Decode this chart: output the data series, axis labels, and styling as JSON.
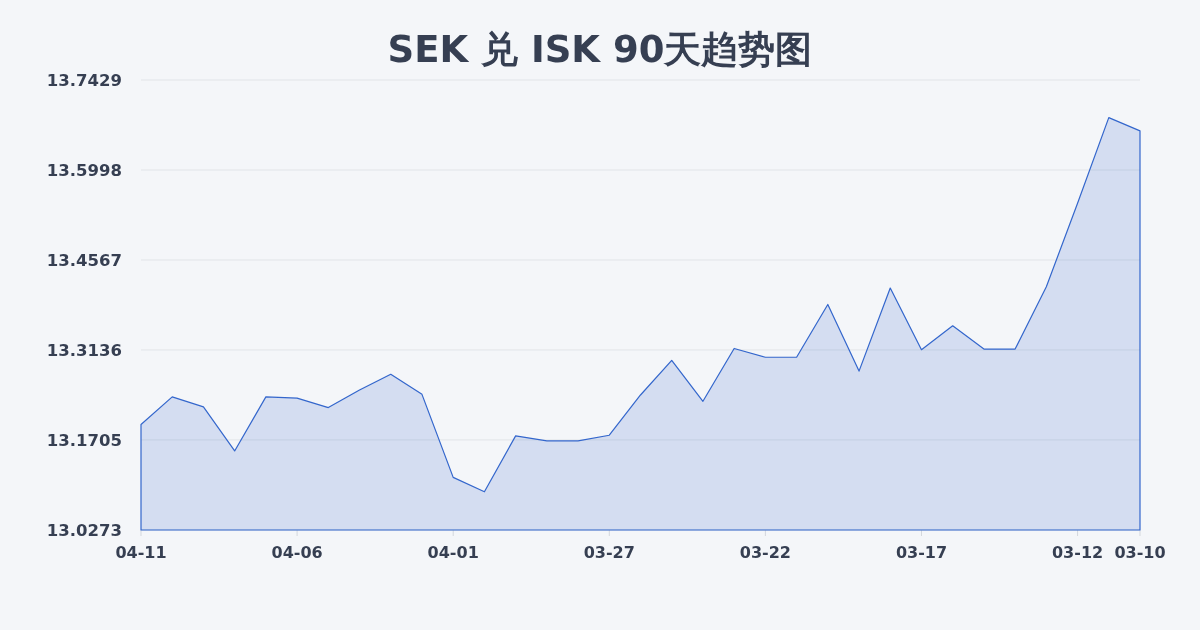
{
  "chart_data": {
    "type": "area",
    "title": "SEK 兑 ISK 90天趋势图",
    "x": [
      "--04-11",
      "--04-10",
      "--04-09",
      "--04-08",
      "--04-07",
      "--04-06",
      "--04-05",
      "--04-04",
      "--04-03",
      "--04-02",
      "--04-01",
      "--03-31",
      "--03-30",
      "--03-29",
      "--03-28",
      "--03-27",
      "--03-26",
      "--03-25",
      "--03-24",
      "--03-23",
      "--03-22",
      "--03-21",
      "--03-20",
      "--03-19",
      "--03-18",
      "--03-17",
      "--03-16",
      "--03-15",
      "--03-14",
      "--03-13",
      "--03-12",
      "--03-11",
      "--03-10"
    ],
    "values": [
      13.195,
      13.239,
      13.223,
      13.153,
      13.239,
      13.237,
      13.222,
      13.25,
      13.275,
      13.243,
      13.111,
      13.088,
      13.177,
      13.169,
      13.169,
      13.178,
      13.242,
      13.297,
      13.232,
      13.316,
      13.302,
      13.302,
      13.386,
      13.28,
      13.412,
      13.314,
      13.352,
      13.315,
      13.315,
      13.414,
      13.547,
      13.683,
      13.662
    ],
    "color": "#3366cc",
    "xlim": [
      "--04-11",
      "--03-10"
    ],
    "xticks": [
      {
        "value": "--04-11",
        "label": "04-11"
      },
      {
        "value": "--04-06",
        "label": "04-06"
      },
      {
        "value": "--04-01",
        "label": "04-01"
      },
      {
        "value": "--03-27",
        "label": "03-27"
      },
      {
        "value": "--03-22",
        "label": "03-22"
      },
      {
        "value": "--03-17",
        "label": "03-17"
      },
      {
        "value": "--03-12",
        "label": "03-12"
      },
      {
        "value": "--03-10",
        "label": "03-10"
      }
    ],
    "ylim": [
      13.0273,
      13.7429
    ],
    "yticks": [
      13.0273,
      13.1705,
      13.3136,
      13.4567,
      13.5998,
      13.7429
    ],
    "grid": "y"
  }
}
